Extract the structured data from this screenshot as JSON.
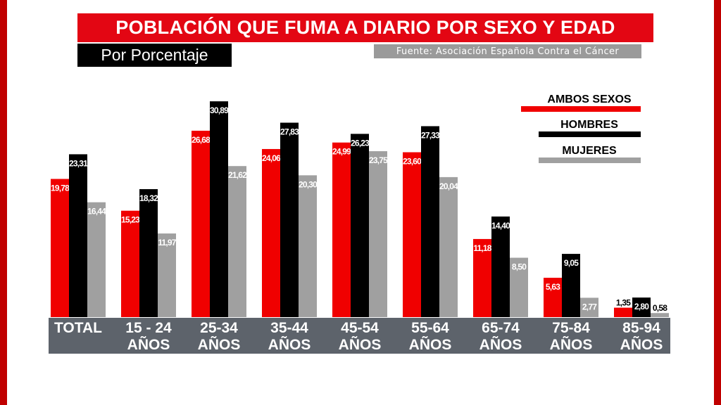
{
  "header": {
    "title": "POBLACIÓN QUE FUMA A DIARIO POR SEXO Y EDAD",
    "subtitle": "Por Porcentaje",
    "source": "Fuente: Asociación Española Contra el Cáncer"
  },
  "colors": {
    "ambos": "#f00000",
    "hombres": "#000000",
    "mujeres": "#a0a0a0",
    "axis_band": "#5d636b",
    "accent_border": "#c00000"
  },
  "chart_data": {
    "type": "bar",
    "title": "POBLACIÓN QUE FUMA A DIARIO POR SEXO Y EDAD",
    "subtitle": "Por Porcentaje",
    "categories": [
      "TOTAL",
      "15 - 24 AÑOS",
      "25-34 AÑOS",
      "35-44 AÑOS",
      "45-54 AÑOS",
      "55-64 AÑOS",
      "65-74 AÑOS",
      "75-84 AÑOS",
      "85-94 AÑOS"
    ],
    "category_lines": [
      [
        "TOTAL"
      ],
      [
        "15 - 24",
        "AÑOS"
      ],
      [
        "25-34",
        "AÑOS"
      ],
      [
        "35-44",
        "AÑOS"
      ],
      [
        "45-54",
        "AÑOS"
      ],
      [
        "55-64",
        "AÑOS"
      ],
      [
        "65-74",
        "AÑOS"
      ],
      [
        "75-84",
        "AÑOS"
      ],
      [
        "85-94",
        "AÑOS"
      ]
    ],
    "series": [
      {
        "name": "AMBOS SEXOS",
        "color": "#f00000",
        "values": [
          19.78,
          15.23,
          26.68,
          24.06,
          24.99,
          23.6,
          11.18,
          5.63,
          1.35
        ],
        "labels": [
          "19,78",
          "15,23",
          "26,68",
          "24,06",
          "24,99",
          "23,60",
          "11,18",
          "5,63",
          "1,35"
        ]
      },
      {
        "name": "HOMBRES",
        "color": "#000000",
        "values": [
          23.31,
          18.32,
          30.89,
          27.83,
          26.23,
          27.33,
          14.4,
          9.05,
          2.8
        ],
        "labels": [
          "23,31",
          "18,32",
          "30,89",
          "27,83",
          "26,23",
          "27,33",
          "14,40",
          "9,05",
          "2,80"
        ]
      },
      {
        "name": "MUJERES",
        "color": "#a0a0a0",
        "values": [
          16.44,
          11.97,
          21.62,
          20.3,
          23.75,
          20.04,
          8.5,
          2.77,
          0.58
        ],
        "labels": [
          "16,44",
          "11,97",
          "21,62",
          "20,30",
          "23,75",
          "20,04",
          "8,50",
          "2,77",
          "0,58"
        ]
      }
    ],
    "ylim": [
      0,
      31
    ],
    "grid": false,
    "legend": "top-right"
  }
}
